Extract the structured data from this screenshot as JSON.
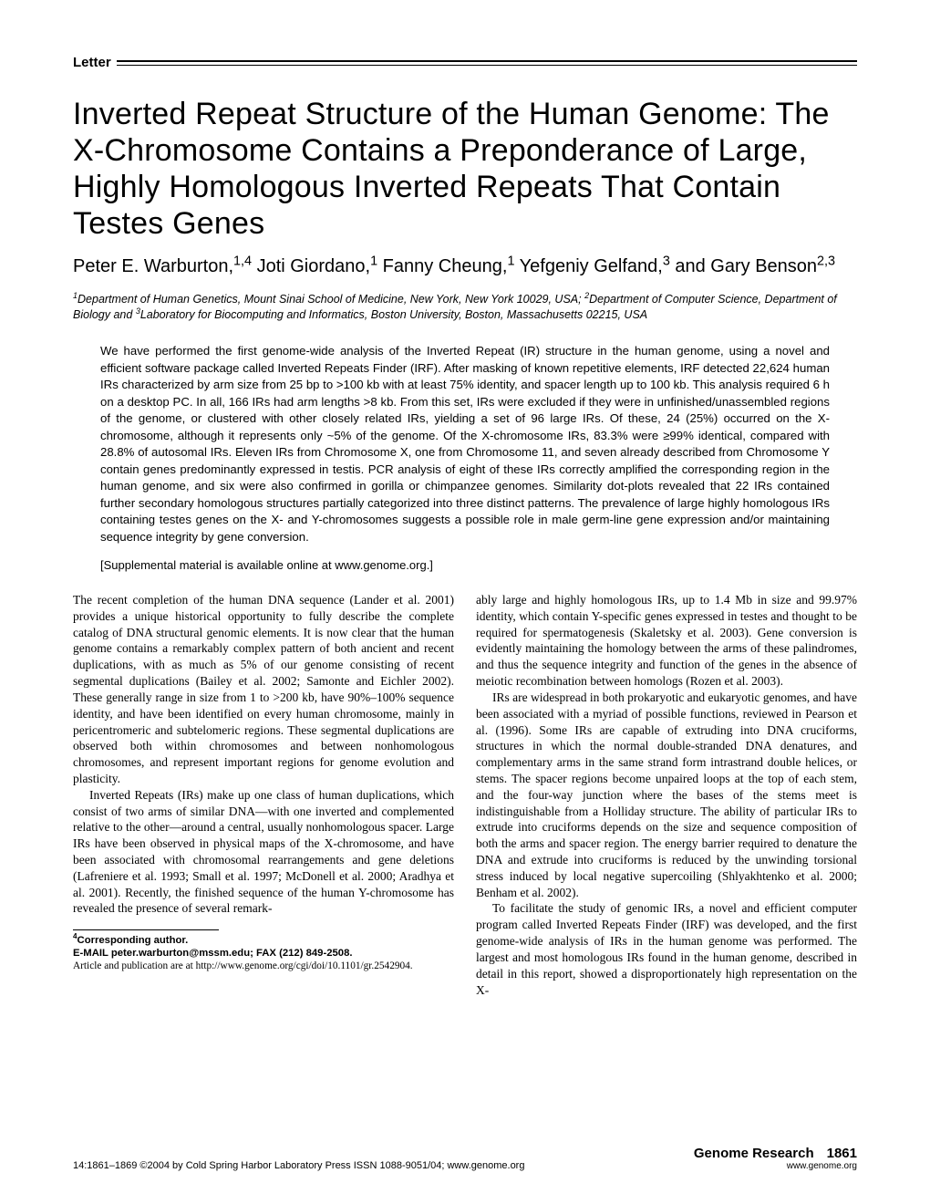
{
  "label": "Letter",
  "title": "Inverted Repeat Structure of the Human Genome: The X-Chromosome Contains a Preponderance of Large, Highly Homologous Inverted Repeats That Contain Testes Genes",
  "authors_html": "Peter E. Warburton,<sup>1,4</sup> Joti Giordano,<sup>1</sup> Fanny Cheung,<sup>1</sup> Yefgeniy Gelfand,<sup>3</sup> and Gary Benson<sup>2,3</sup>",
  "affiliations_html": "<sup>1</sup>Department of Human Genetics, Mount Sinai School of Medicine, New York, New York 10029, USA; <sup>2</sup>Department of Computer Science, Department of Biology and <sup>3</sup>Laboratory for Biocomputing and Informatics, Boston University, Boston, Massachusetts 02215, USA",
  "abstract": "We have performed the first genome-wide analysis of the Inverted Repeat (IR) structure in the human genome, using a novel and efficient software package called Inverted Repeats Finder (IRF). After masking of known repetitive elements, IRF detected 22,624 human IRs characterized by arm size from 25 bp to >100 kb with at least 75% identity, and spacer length up to 100 kb. This analysis required 6 h on a desktop PC. In all, 166 IRs had arm lengths >8 kb. From this set, IRs were excluded if they were in unfinished/unassembled regions of the genome, or clustered with other closely related IRs, yielding a set of 96 large IRs. Of these, 24 (25%) occurred on the X-chromosome, although it represents only ~5% of the genome. Of the X-chromosome IRs, 83.3% were ≥99% identical, compared with 28.8% of autosomal IRs. Eleven IRs from Chromosome X, one from Chromosome 11, and seven already described from Chromosome Y contain genes predominantly expressed in testis. PCR analysis of eight of these IRs correctly amplified the corresponding region in the human genome, and six were also confirmed in gorilla or chimpanzee genomes. Similarity dot-plots revealed that 22 IRs contained further secondary homologous structures partially categorized into three distinct patterns. The prevalence of large highly homologous IRs containing testes genes on the X- and Y-chromosomes suggests a possible role in male germ-line gene expression and/or maintaining sequence integrity by gene conversion.",
  "supplemental": "[Supplemental material is available online at www.genome.org.]",
  "body": {
    "col1": {
      "p1": "The recent completion of the human DNA sequence (Lander et al. 2001) provides a unique historical opportunity to fully describe the complete catalog of DNA structural genomic elements. It is now clear that the human genome contains a remarkably complex pattern of both ancient and recent duplications, with as much as 5% of our genome consisting of recent segmental duplications (Bailey et al. 2002; Samonte and Eichler 2002). These generally range in size from 1 to >200 kb, have 90%–100% sequence identity, and have been identified on every human chromosome, mainly in pericentromeric and subtelomeric regions. These segmental duplications are observed both within chromosomes and between nonhomologous chromosomes, and represent important regions for genome evolution and plasticity.",
      "p2": "Inverted Repeats (IRs) make up one class of human duplications, which consist of two arms of similar DNA—with one inverted and complemented relative to the other—around a central, usually nonhomologous spacer. Large IRs have been observed in physical maps of the X-chromosome, and have been associated with chromosomal rearrangements and gene deletions (Lafreniere et al. 1993; Small et al. 1997; McDonell et al. 2000; Aradhya et al. 2001). Recently, the finished sequence of the human Y-chromosome has revealed the presence of several remark-"
    },
    "col2": {
      "p1": "ably large and highly homologous IRs, up to 1.4 Mb in size and 99.97% identity, which contain Y-specific genes expressed in testes and thought to be required for spermatogenesis (Skaletsky et al. 2003). Gene conversion is evidently maintaining the homology between the arms of these palindromes, and thus the sequence integrity and function of the genes in the absence of meiotic recombination between homologs (Rozen et al. 2003).",
      "p2": "IRs are widespread in both prokaryotic and eukaryotic genomes, and have been associated with a myriad of possible functions, reviewed in Pearson et al. (1996). Some IRs are capable of extruding into DNA cruciforms, structures in which the normal double-stranded DNA denatures, and complementary arms in the same strand form intrastrand double helices, or stems. The spacer regions become unpaired loops at the top of each stem, and the four-way junction where the bases of the stems meet is indistinguishable from a Holliday structure. The ability of particular IRs to extrude into cruciforms depends on the size and sequence composition of both the arms and spacer region. The energy barrier required to denature the DNA and extrude into cruciforms is reduced by the unwinding torsional stress induced by local negative supercoiling (Shlyakhtenko et al. 2000; Benham et al. 2002).",
      "p3": "To facilitate the study of genomic IRs, a novel and efficient computer program called Inverted Repeats Finder (IRF) was developed, and the first genome-wide analysis of IRs in the human genome was performed. The largest and most homologous IRs found in the human genome, described in detail in this report, showed a disproportionately high representation on the X-"
    }
  },
  "footnote": {
    "corresponding": "Corresponding author.",
    "email": "E-MAIL peter.warburton@mssm.edu; FAX (212) 849-2508.",
    "article": "Article and publication are at http://www.genome.org/cgi/doi/10.1101/gr.2542904."
  },
  "footer": {
    "left": "14:1861–1869 ©2004 by Cold Spring Harbor Laboratory Press ISSN 1088-9051/04; www.genome.org",
    "journal": "Genome Research",
    "page": "1861",
    "url": "www.genome.org"
  }
}
